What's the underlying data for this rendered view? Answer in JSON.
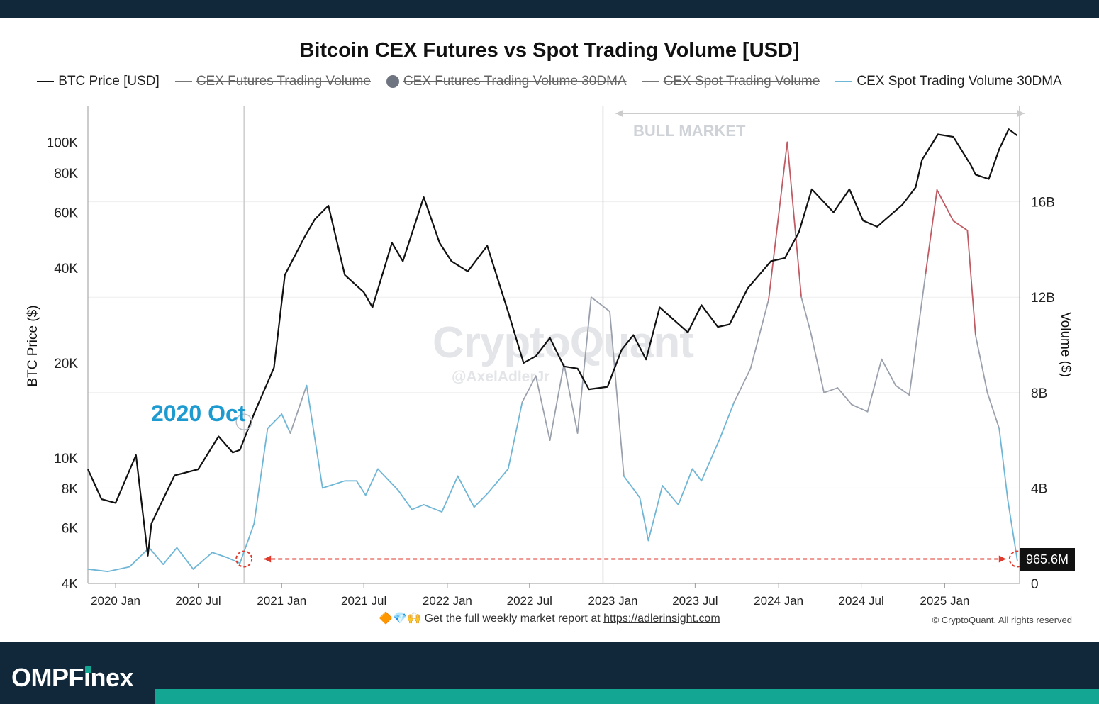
{
  "header": {
    "title": "Bitcoin CEX Futures vs Spot Trading Volume [USD]"
  },
  "legend": [
    {
      "label": "BTC Price [USD]",
      "color": "#111111",
      "active": true,
      "marker": "line"
    },
    {
      "label": "CEX Futures Trading Volume",
      "color": "#777777",
      "active": false,
      "marker": "line"
    },
    {
      "label": "CEX Futures Trading Volume 30DMA",
      "color": "#6e7480",
      "active": false,
      "marker": "dot"
    },
    {
      "label": "CEX Spot Trading Volume",
      "color": "#777777",
      "active": false,
      "marker": "line"
    },
    {
      "label": "CEX Spot Trading Volume 30DMA",
      "color": "#6fb6d6",
      "active": true,
      "marker": "line"
    }
  ],
  "annotations": {
    "oct_label": "2020 Oct",
    "bull_label": "BULL MARKET",
    "last_value": "965.6M",
    "watermark": "CryptoQuant",
    "watermark_handle": "@AxelAdlerJr"
  },
  "footer": {
    "emoji": "🔶💎🙌",
    "text": "Get the full weekly market report at",
    "link": "https://adlerinsight.com",
    "copyright": "© CryptoQuant. All rights reserved"
  },
  "brand": {
    "prefix": "OMPF",
    "i": "i",
    "suffix": "nex"
  },
  "colors": {
    "price": "#111111",
    "spot_low": "#6fb6d6",
    "spot_mid": "#9aa0ac",
    "spot_high": "#c05a63",
    "arrow": "#e03a2c",
    "oct_label": "#1d9bd1"
  },
  "chart_data": {
    "type": "line",
    "title": "Bitcoin CEX Futures vs Spot Trading Volume [USD]",
    "x_ticks": [
      "2020 Jan",
      "2020 Jul",
      "2021 Jan",
      "2021 Jul",
      "2022 Jan",
      "2022 Jul",
      "2023 Jan",
      "2023 Jul",
      "2024 Jan",
      "2024 Jul",
      "2025 Jan"
    ],
    "x_range": [
      "2019-11-01",
      "2025-06-15"
    ],
    "y_left": {
      "label": "BTC Price ($)",
      "scale": "log",
      "range": [
        4000,
        130000
      ],
      "ticks": [
        4000,
        6000,
        8000,
        10000,
        20000,
        40000,
        60000,
        80000,
        100000
      ],
      "tick_labels": [
        "4K",
        "6K",
        "8K",
        "10K",
        "20K",
        "40K",
        "60K",
        "80K",
        "100K"
      ]
    },
    "y_right": {
      "label": "Volume ($)",
      "scale": "linear",
      "range": [
        0,
        20000000000
      ],
      "ticks": [
        0,
        4000000000,
        8000000000,
        12000000000,
        16000000000
      ],
      "tick_labels": [
        "0",
        "4B",
        "8B",
        "12B",
        "16B"
      ]
    },
    "series": [
      {
        "name": "BTC Price [USD]",
        "axis": "left",
        "x": [
          "2019-11-01",
          "2019-12-01",
          "2020-01-01",
          "2020-02-15",
          "2020-03-12",
          "2020-03-20",
          "2020-05-10",
          "2020-07-01",
          "2020-08-15",
          "2020-09-15",
          "2020-10-01",
          "2020-11-01",
          "2020-12-15",
          "2021-01-08",
          "2021-02-20",
          "2021-03-15",
          "2021-04-14",
          "2021-05-20",
          "2021-07-01",
          "2021-07-20",
          "2021-09-01",
          "2021-09-25",
          "2021-11-10",
          "2021-12-15",
          "2022-01-10",
          "2022-02-15",
          "2022-03-30",
          "2022-05-15",
          "2022-06-18",
          "2022-07-15",
          "2022-08-15",
          "2022-09-15",
          "2022-10-15",
          "2022-11-09",
          "2022-12-20",
          "2023-01-20",
          "2023-02-15",
          "2023-03-15",
          "2023-04-14",
          "2023-06-15",
          "2023-07-15",
          "2023-08-20",
          "2023-09-15",
          "2023-10-25",
          "2023-12-15",
          "2024-01-15",
          "2024-02-15",
          "2024-03-14",
          "2024-05-01",
          "2024-06-05",
          "2024-07-05",
          "2024-08-05",
          "2024-09-30",
          "2024-10-29",
          "2024-11-12",
          "2024-12-17",
          "2025-01-20",
          "2025-02-28",
          "2025-03-10",
          "2025-04-08",
          "2025-05-01",
          "2025-05-22",
          "2025-06-10"
        ],
        "values": [
          9200,
          7400,
          7200,
          10200,
          4900,
          6200,
          8800,
          9200,
          11700,
          10400,
          10600,
          13800,
          19300,
          38000,
          50000,
          57000,
          63000,
          38000,
          33500,
          30000,
          48000,
          42000,
          67000,
          48000,
          42000,
          39000,
          47000,
          29000,
          20000,
          21000,
          24000,
          19500,
          19200,
          16500,
          16800,
          22000,
          24500,
          20500,
          30000,
          25000,
          30500,
          26000,
          26500,
          34500,
          42000,
          43000,
          52000,
          71000,
          60000,
          71000,
          56500,
          54000,
          63500,
          72000,
          88000,
          106000,
          104000,
          84500,
          79000,
          76500,
          95000,
          110000,
          105000
        ]
      },
      {
        "name": "CEX Spot Trading Volume 30DMA",
        "axis": "right",
        "x": [
          "2019-11-01",
          "2019-12-15",
          "2020-02-01",
          "2020-03-15",
          "2020-04-15",
          "2020-05-15",
          "2020-06-20",
          "2020-08-01",
          "2020-09-01",
          "2020-10-01",
          "2020-11-01",
          "2020-12-01",
          "2021-01-01",
          "2021-01-20",
          "2021-02-25",
          "2021-04-01",
          "2021-05-20",
          "2021-06-15",
          "2021-07-05",
          "2021-08-01",
          "2021-09-15",
          "2021-10-15",
          "2021-11-10",
          "2021-12-20",
          "2022-01-24",
          "2022-03-01",
          "2022-04-01",
          "2022-05-15",
          "2022-06-15",
          "2022-07-15",
          "2022-08-15",
          "2022-09-15",
          "2022-10-15",
          "2022-11-14",
          "2022-12-25",
          "2023-01-25",
          "2023-03-01",
          "2023-03-20",
          "2023-04-20",
          "2023-05-25",
          "2023-06-25",
          "2023-07-15",
          "2023-08-25",
          "2023-09-25",
          "2023-10-31",
          "2023-12-10",
          "2024-01-20",
          "2024-02-20",
          "2024-03-12",
          "2024-04-10",
          "2024-05-10",
          "2024-06-10",
          "2024-07-15",
          "2024-08-15",
          "2024-09-15",
          "2024-10-15",
          "2024-11-20",
          "2024-12-15",
          "2025-01-20",
          "2025-02-20",
          "2025-03-10",
          "2025-04-05",
          "2025-05-01",
          "2025-05-20",
          "2025-06-10"
        ],
        "values": [
          600000000,
          500000000,
          700000000,
          1500000000,
          800000000,
          1500000000,
          600000000,
          1300000000,
          1100000000,
          850000000,
          2500000000,
          6500000000,
          7100000000,
          6300000000,
          8300000000,
          4000000000,
          4300000000,
          4300000000,
          3700000000,
          4800000000,
          3900000000,
          3100000000,
          3300000000,
          3000000000,
          4500000000,
          3200000000,
          3800000000,
          4800000000,
          7600000000,
          8700000000,
          6000000000,
          9200000000,
          6300000000,
          12000000000,
          11400000000,
          4500000000,
          3600000000,
          1800000000,
          4100000000,
          3300000000,
          4800000000,
          4300000000,
          6100000000,
          7600000000,
          9000000000,
          11900000000,
          18500000000,
          12000000000,
          10500000000,
          8000000000,
          8200000000,
          7500000000,
          7200000000,
          9400000000,
          8300000000,
          7900000000,
          13000000000,
          16500000000,
          15200000000,
          14800000000,
          10400000000,
          8000000000,
          6500000000,
          3500000000,
          965600000
        ]
      }
    ],
    "reference_lines": [
      {
        "type": "vertical",
        "x": "2020-10-10"
      },
      {
        "type": "vertical",
        "x": "2022-12-10"
      },
      {
        "type": "range-arrow",
        "label": "BULL MARKET",
        "from": "2022-12-10",
        "to": "2025-06-10"
      },
      {
        "type": "horizontal-arrow",
        "y": 965600000,
        "from": "2020-10-10",
        "to": "2025-06-10"
      }
    ]
  }
}
